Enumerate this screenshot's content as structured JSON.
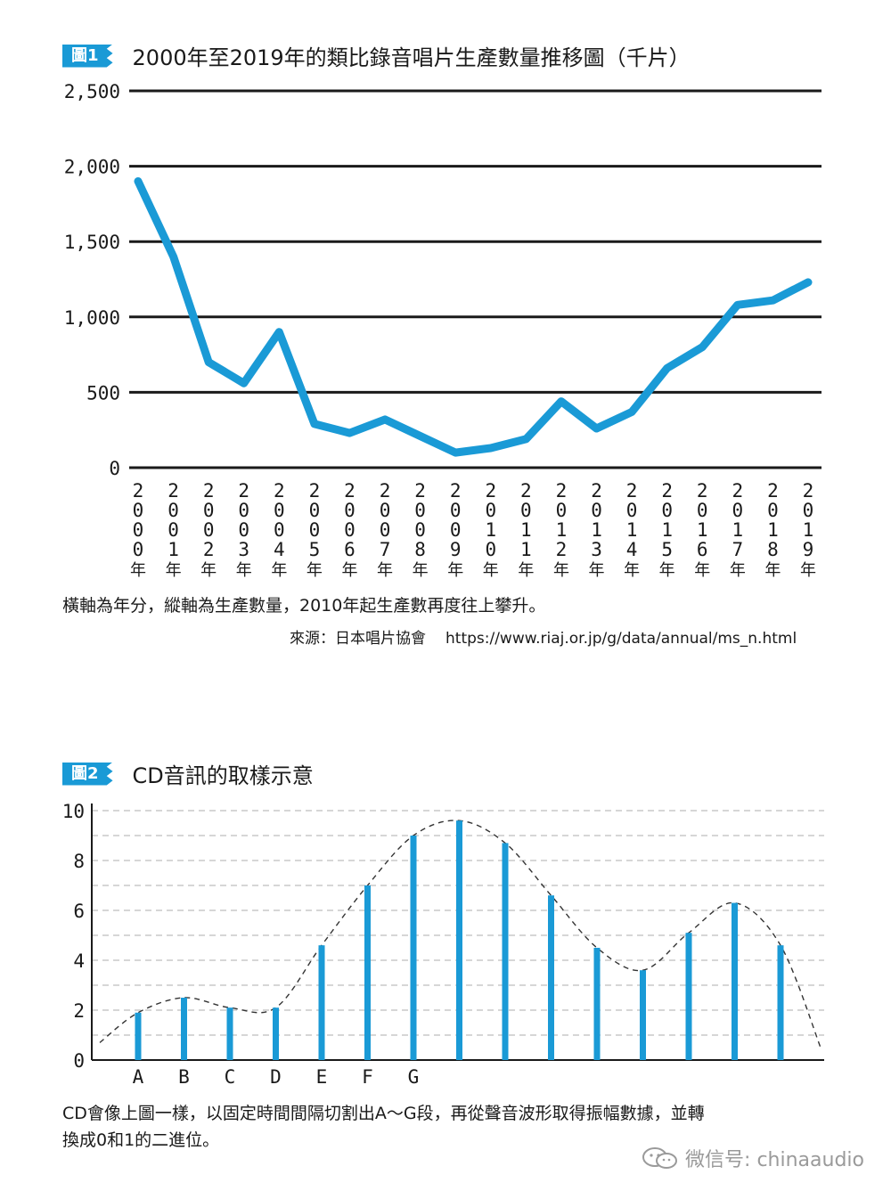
{
  "figure1": {
    "tag": "圖1",
    "title": "2000年至2019年的類比錄音唱片生產數量推移圖（千片）",
    "caption": "橫軸為年分，縱軸為生產數量，2010年起生產數再度往上攀升。",
    "source_label": "來源：日本唱片協會",
    "source_url": "https://www.riaj.or.jp/g/data/annual/ms_n.html",
    "line_color": "#1a9ad6",
    "y_tick_labels": [
      "0",
      "500",
      "1,000",
      "1,500",
      "2,000",
      "2,500"
    ],
    "year_suffix": "年"
  },
  "figure2": {
    "tag": "圖2",
    "title": "CD音訊的取樣示意",
    "caption_line1": "CD會像上圖一樣，以固定時間間隔切割出A～G段，再從聲音波形取得振幅數據，並轉",
    "caption_line2": "換成0和1的二進位。",
    "bar_color": "#1a9ad6",
    "y_tick_labels": [
      "0",
      "2",
      "4",
      "6",
      "8",
      "10"
    ],
    "segment_labels": [
      "A",
      "B",
      "C",
      "D",
      "E",
      "F",
      "G"
    ]
  },
  "watermark": {
    "text": "微信号: chinaaudio"
  },
  "chart_data": [
    {
      "type": "line",
      "title": "2000年至2019年的類比錄音唱片生產數量推移圖（千片）",
      "x": [
        "2000",
        "2001",
        "2002",
        "2003",
        "2004",
        "2005",
        "2006",
        "2007",
        "2008",
        "2009",
        "2010",
        "2011",
        "2012",
        "2013",
        "2014",
        "2015",
        "2016",
        "2017",
        "2018",
        "2019"
      ],
      "values": [
        1900,
        1400,
        700,
        560,
        900,
        290,
        230,
        320,
        210,
        100,
        130,
        190,
        440,
        260,
        370,
        660,
        800,
        1080,
        1110,
        1230
      ],
      "ylim": [
        0,
        2500
      ],
      "yticks": [
        0,
        500,
        1000,
        1500,
        2000,
        2500
      ],
      "grid": true
    },
    {
      "type": "bar",
      "title": "CD音訊的取樣示意",
      "categories": [
        "A",
        "B",
        "C",
        "D",
        "E",
        "F",
        "G",
        "",
        "",
        "",
        "",
        "",
        "",
        "",
        ""
      ],
      "values": [
        1.9,
        2.5,
        2.1,
        2.1,
        4.6,
        7.0,
        9.0,
        9.6,
        8.7,
        6.6,
        4.5,
        3.6,
        5.1,
        6.3,
        4.6
      ],
      "curve": [
        [
          0,
          0.7
        ],
        [
          1,
          1.9
        ],
        [
          2,
          2.5
        ],
        [
          3,
          2.1
        ],
        [
          4,
          2.1
        ],
        [
          5,
          4.6
        ],
        [
          6,
          7.0
        ],
        [
          7,
          9.0
        ],
        [
          8,
          9.6
        ],
        [
          9,
          8.7
        ],
        [
          10,
          6.6
        ],
        [
          11,
          4.5
        ],
        [
          12,
          3.6
        ],
        [
          13,
          5.1
        ],
        [
          14,
          6.3
        ],
        [
          15,
          4.6
        ],
        [
          16,
          0.4
        ]
      ],
      "ylim": [
        0,
        10
      ],
      "yticks": [
        0,
        2,
        4,
        6,
        8,
        10
      ],
      "grid": true
    }
  ]
}
